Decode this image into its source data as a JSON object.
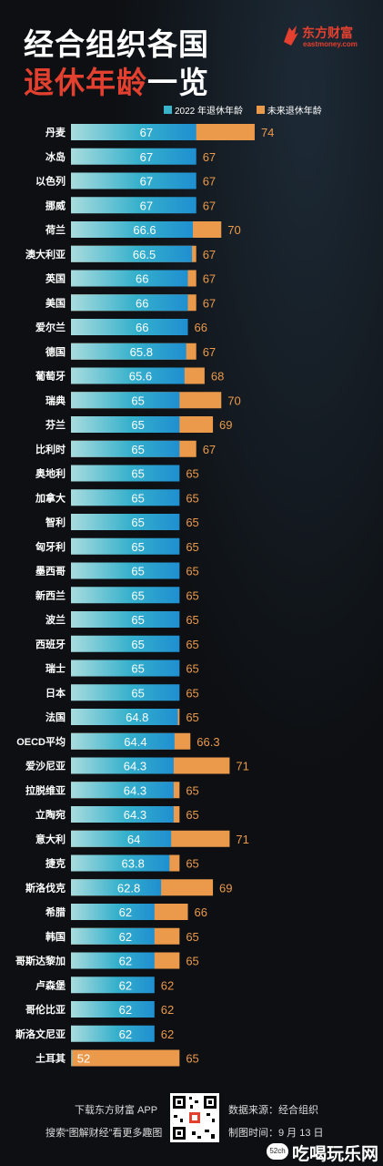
{
  "header": {
    "title_line1": "经合组织各国",
    "title_highlight": "退休年龄",
    "title_tail": "一览",
    "logo_brand": "东方财富",
    "logo_sub": "eastmoney.com"
  },
  "colors": {
    "background": "#0d0f12",
    "series_2022": "#38b3c9",
    "series_future": "#eb9a4c",
    "title_accent": "#e3402f"
  },
  "chart_data": {
    "type": "bar",
    "orientation": "horizontal",
    "series": [
      {
        "name": "2022 年退休年龄",
        "values": [
          67,
          67,
          67,
          67,
          66.6,
          66.5,
          66,
          66,
          66,
          65.8,
          65.6,
          65,
          65,
          65,
          65,
          65,
          65,
          65,
          65,
          65,
          65,
          65,
          65,
          65,
          64.8,
          64.4,
          64.3,
          64.3,
          64.3,
          64,
          63.8,
          62.8,
          62,
          62,
          62,
          62,
          62,
          62,
          52
        ]
      },
      {
        "name": "未来退休年龄",
        "values": [
          74,
          67,
          67,
          67,
          70,
          67,
          67,
          67,
          66,
          67,
          68,
          70,
          69,
          67,
          65,
          65,
          65,
          65,
          65,
          65,
          65,
          65,
          65,
          65,
          65,
          66.3,
          71,
          65,
          65,
          71,
          65,
          69,
          66,
          65,
          65,
          62,
          62,
          62,
          65
        ]
      }
    ],
    "categories": [
      "丹麦",
      "冰岛",
      "以色列",
      "挪威",
      "荷兰",
      "澳大利亚",
      "英国",
      "美国",
      "爱尔兰",
      "德国",
      "葡萄牙",
      "瑞典",
      "芬兰",
      "比利时",
      "奥地利",
      "加拿大",
      "智利",
      "匈牙利",
      "墨西哥",
      "新西兰",
      "波兰",
      "西班牙",
      "瑞士",
      "日本",
      "法国",
      "OECD平均",
      "爱沙尼亚",
      "拉脱维亚",
      "立陶宛",
      "意大利",
      "捷克",
      "斯洛伐克",
      "希腊",
      "韩国",
      "哥斯达黎加",
      "卢森堡",
      "哥伦比亚",
      "斯洛文尼亚",
      "土耳其"
    ],
    "labels_2022": [
      "67",
      "67",
      "67",
      "67",
      "66.6",
      "66.5",
      "66",
      "66",
      "66",
      "65.8",
      "65.6",
      "65",
      "65",
      "65",
      "65",
      "65",
      "65",
      "65",
      "65",
      "65",
      "65",
      "65",
      "65",
      "65",
      "64.8",
      "64.4",
      "64.3",
      "64.3",
      "64.3",
      "64",
      "63.8",
      "62.8",
      "62",
      "62",
      "62",
      "62",
      "62",
      "62",
      "52"
    ],
    "labels_future": [
      "74",
      "67",
      "67",
      "67",
      "70",
      "67",
      "67",
      "67",
      "66",
      "67",
      "68",
      "70",
      "69",
      "67",
      "65",
      "65",
      "65",
      "65",
      "65",
      "65",
      "65",
      "65",
      "65",
      "65",
      "65",
      "66.3",
      "71",
      "65",
      "65",
      "71",
      "65",
      "69",
      "66",
      "65",
      "65",
      "62",
      "62",
      "62",
      "65"
    ],
    "legend_placement": "top-right",
    "grid": false
  },
  "footer": {
    "download": "下载东方财富 APP",
    "search": "搜索“图解财经”看更多趣图",
    "source": "数据来源：经合组织",
    "date": "制图时间：9 月 13 日"
  },
  "watermark": {
    "badge": "52ch",
    "text": "吃喝玩乐网"
  }
}
